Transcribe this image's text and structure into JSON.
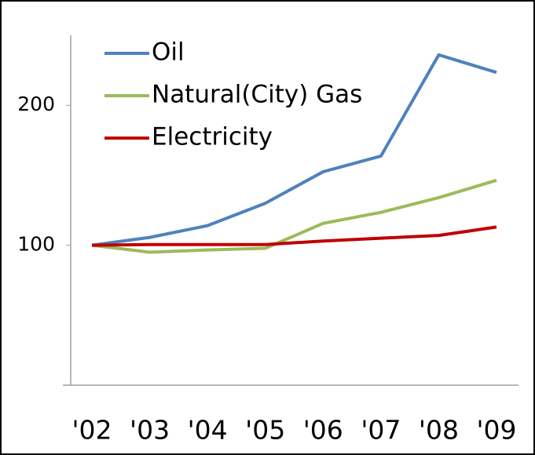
{
  "chart_data": {
    "type": "line",
    "categories": [
      "'02",
      "'03",
      "'04",
      "'05",
      "'06",
      "'07",
      "'08",
      "'09"
    ],
    "series": [
      {
        "name": "Oil",
        "color": "#4f81bd",
        "values": [
          100,
          105.6,
          114,
          130,
          152.5,
          163.7,
          236,
          223.5
        ]
      },
      {
        "name": "Natural(City) Gas",
        "color": "#9bbb59",
        "values": [
          100,
          95,
          96.6,
          97.8,
          115.6,
          123.5,
          134,
          146.4
        ]
      },
      {
        "name": "Electricity",
        "color": "#c00000",
        "values": [
          100,
          100.5,
          100.5,
          100.5,
          103,
          105,
          107,
          113
        ]
      }
    ],
    "ylim": [
      0,
      250
    ],
    "yticks": [
      100,
      200
    ],
    "grid": false,
    "legend": "top-left"
  }
}
